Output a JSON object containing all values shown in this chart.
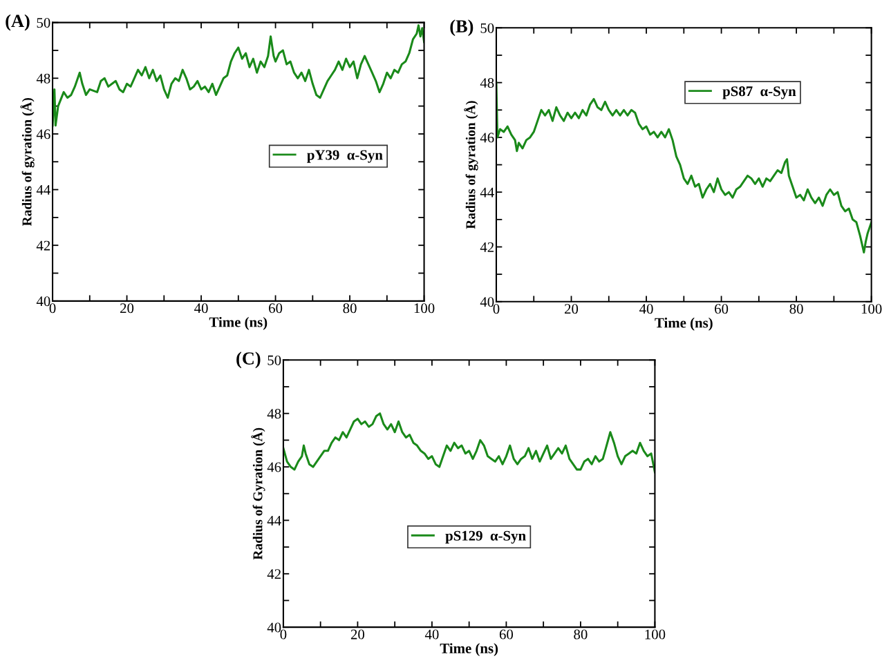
{
  "chart_data": [
    {
      "type": "line",
      "title": "(A)",
      "xlabel": "Time (ns)",
      "ylabel": "Radius of gyration (Å)",
      "legend": "right",
      "grid": false,
      "xlim": [
        0,
        100
      ],
      "ylim": [
        40,
        50
      ],
      "xticks": [
        0,
        {
          "value": 10,
          "label": null
        },
        20,
        {
          "value": 30,
          "label": null
        },
        40,
        {
          "value": 50,
          "label": null
        },
        60,
        {
          "value": 70,
          "label": null
        },
        80,
        {
          "value": 90,
          "label": null
        },
        100
      ],
      "yticks": [
        40,
        {
          "value": 41,
          "label": null
        },
        42,
        {
          "value": 43,
          "label": null
        },
        44,
        {
          "value": 45,
          "label": null
        },
        46,
        {
          "value": 47,
          "label": null
        },
        48,
        {
          "value": 49,
          "label": null
        },
        50
      ],
      "x": [
        0,
        0.5,
        0.8,
        1.5,
        3,
        4,
        5,
        6,
        7.3,
        8,
        9,
        10,
        12,
        13,
        14,
        15,
        16,
        17,
        18,
        19,
        20,
        21,
        22,
        23,
        24,
        25,
        26,
        27,
        28,
        29,
        30,
        31,
        32,
        33,
        34,
        35,
        36,
        37,
        38,
        39,
        40,
        41,
        42,
        43,
        44,
        45,
        46,
        47,
        48,
        49,
        50,
        51,
        52,
        53,
        54,
        55,
        56,
        57,
        58,
        58.7,
        59.5,
        60,
        61,
        62,
        63,
        64,
        65,
        66,
        67,
        68,
        69,
        70,
        71,
        72,
        73,
        74,
        75,
        76,
        77,
        78,
        79,
        80,
        81,
        82,
        83,
        84,
        85,
        86,
        87,
        88,
        89,
        90,
        91,
        92,
        93,
        94,
        95,
        96,
        97,
        98,
        98.5,
        99,
        99.5,
        100
      ],
      "series": [
        {
          "name": "pY39  α-Syn",
          "color": "#1a8a1a",
          "values": [
            46.3,
            47.6,
            46.3,
            47.0,
            47.5,
            47.3,
            47.4,
            47.7,
            48.2,
            47.8,
            47.4,
            47.6,
            47.5,
            47.9,
            48.0,
            47.7,
            47.8,
            47.9,
            47.6,
            47.5,
            47.8,
            47.7,
            48.0,
            48.3,
            48.1,
            48.4,
            48.0,
            48.3,
            47.9,
            48.1,
            47.6,
            47.3,
            47.8,
            48.0,
            47.9,
            48.3,
            48.0,
            47.6,
            47.7,
            47.9,
            47.6,
            47.7,
            47.5,
            47.8,
            47.4,
            47.7,
            48.0,
            48.1,
            48.6,
            48.9,
            49.1,
            48.7,
            48.9,
            48.4,
            48.7,
            48.2,
            48.6,
            48.4,
            48.8,
            49.5,
            48.8,
            48.6,
            48.9,
            49.0,
            48.5,
            48.6,
            48.2,
            48.0,
            48.2,
            47.9,
            48.3,
            47.8,
            47.4,
            47.3,
            47.6,
            47.9,
            48.1,
            48.3,
            48.6,
            48.3,
            48.7,
            48.4,
            48.6,
            48.0,
            48.5,
            48.8,
            48.5,
            48.2,
            47.9,
            47.5,
            47.8,
            48.2,
            48.0,
            48.3,
            48.2,
            48.5,
            48.6,
            48.9,
            49.4,
            49.6,
            49.9,
            49.5,
            49.8,
            49.3
          ]
        }
      ]
    },
    {
      "type": "line",
      "title": "(B)",
      "xlabel": "Time (ns)",
      "ylabel": "Radius of gyration (Å)",
      "legend": "top right",
      "grid": false,
      "xlim": [
        0,
        100
      ],
      "ylim": [
        40,
        50
      ],
      "xticks": [
        0,
        {
          "value": 10,
          "label": null
        },
        20,
        {
          "value": 30,
          "label": null
        },
        40,
        {
          "value": 50,
          "label": null
        },
        60,
        {
          "value": 70,
          "label": null
        },
        80,
        {
          "value": 90,
          "label": null
        },
        100
      ],
      "yticks": [
        40,
        {
          "value": 41,
          "label": null
        },
        42,
        {
          "value": 43,
          "label": null
        },
        44,
        {
          "value": 45,
          "label": null
        },
        46,
        {
          "value": 47,
          "label": null
        },
        48,
        {
          "value": 49,
          "label": null
        },
        50
      ],
      "x": [
        0,
        0.3,
        1,
        2,
        3,
        4,
        5,
        5.5,
        6,
        7,
        8,
        9,
        10,
        11,
        12,
        13,
        14,
        15,
        16,
        17,
        18,
        19,
        20,
        21,
        22,
        23,
        24,
        25,
        26,
        27,
        28,
        29,
        30,
        31,
        32,
        33,
        34,
        35,
        36,
        37,
        38,
        39,
        40,
        41,
        42,
        43,
        44,
        45,
        46,
        47,
        48,
        49,
        50,
        51,
        52,
        53,
        54,
        55,
        56,
        57,
        58,
        59,
        60,
        61,
        62,
        63,
        64,
        65,
        66,
        67,
        68,
        69,
        70,
        71,
        72,
        73,
        74,
        75,
        76,
        77,
        77.5,
        78,
        79,
        80,
        81,
        82,
        83,
        84,
        85,
        86,
        87,
        88,
        89,
        90,
        91,
        92,
        93,
        94,
        95,
        96,
        97,
        98,
        98.5,
        99,
        100
      ],
      "series": [
        {
          "name": "pS87  α-Syn",
          "color": "#1a8a1a",
          "values": [
            48.0,
            46.0,
            46.3,
            46.2,
            46.4,
            46.1,
            45.9,
            45.5,
            45.8,
            45.6,
            45.9,
            46.0,
            46.2,
            46.6,
            47.0,
            46.8,
            47.0,
            46.6,
            47.1,
            46.8,
            46.6,
            46.9,
            46.7,
            46.9,
            46.7,
            47.0,
            46.8,
            47.2,
            47.4,
            47.1,
            47.0,
            47.3,
            47.0,
            46.8,
            47.0,
            46.8,
            47.0,
            46.8,
            47.0,
            46.9,
            46.5,
            46.3,
            46.4,
            46.1,
            46.2,
            46.0,
            46.2,
            46.0,
            46.3,
            45.9,
            45.3,
            45.0,
            44.5,
            44.3,
            44.6,
            44.2,
            44.3,
            43.8,
            44.1,
            44.3,
            44.0,
            44.5,
            44.1,
            43.9,
            44.0,
            43.8,
            44.1,
            44.2,
            44.4,
            44.6,
            44.5,
            44.3,
            44.5,
            44.2,
            44.5,
            44.4,
            44.6,
            44.8,
            44.7,
            45.1,
            45.2,
            44.6,
            44.2,
            43.8,
            43.9,
            43.7,
            44.1,
            43.8,
            43.6,
            43.8,
            43.5,
            43.9,
            44.1,
            43.9,
            44.0,
            43.5,
            43.3,
            43.4,
            43.0,
            42.9,
            42.4,
            41.8,
            42.2,
            42.5,
            42.9
          ]
        }
      ]
    },
    {
      "type": "line",
      "title": "(C)",
      "xlabel": "Time (ns)",
      "ylabel": "Radius of Gyration (Å)",
      "legend": "bottom",
      "grid": false,
      "xlim": [
        0,
        100
      ],
      "ylim": [
        40,
        50
      ],
      "xticks": [
        0,
        {
          "value": 10,
          "label": null
        },
        20,
        {
          "value": 30,
          "label": null
        },
        40,
        {
          "value": 50,
          "label": null
        },
        60,
        {
          "value": 70,
          "label": null
        },
        80,
        {
          "value": 90,
          "label": null
        },
        100
      ],
      "yticks": [
        40,
        {
          "value": 41,
          "label": null
        },
        42,
        {
          "value": 43,
          "label": null
        },
        44,
        {
          "value": 45,
          "label": null
        },
        46,
        {
          "value": 47,
          "label": null
        },
        48,
        {
          "value": 49,
          "label": null
        },
        50
      ],
      "x": [
        0,
        1,
        2,
        3,
        4,
        5,
        5.5,
        6,
        7,
        8,
        9,
        10,
        11,
        12,
        13,
        14,
        15,
        16,
        17,
        18,
        19,
        20,
        21,
        22,
        23,
        24,
        25,
        26,
        27,
        28,
        29,
        30,
        31,
        32,
        33,
        34,
        35,
        36,
        37,
        38,
        39,
        40,
        41,
        42,
        43,
        44,
        45,
        46,
        47,
        48,
        49,
        50,
        51,
        52,
        53,
        54,
        55,
        56,
        57,
        58,
        59,
        60,
        61,
        62,
        63,
        64,
        65,
        66,
        67,
        68,
        69,
        70,
        71,
        72,
        73,
        74,
        75,
        76,
        77,
        78,
        79,
        80,
        81,
        82,
        83,
        84,
        85,
        86,
        87,
        88,
        89,
        90,
        91,
        92,
        93,
        94,
        95,
        96,
        97,
        98,
        99,
        100
      ],
      "series": [
        {
          "name": "pS129  α-Syn",
          "color": "#1a8a1a",
          "values": [
            46.7,
            46.2,
            46.0,
            45.9,
            46.2,
            46.4,
            46.8,
            46.5,
            46.1,
            46.0,
            46.2,
            46.4,
            46.6,
            46.6,
            46.9,
            47.1,
            47.0,
            47.3,
            47.1,
            47.4,
            47.7,
            47.8,
            47.6,
            47.7,
            47.5,
            47.6,
            47.9,
            48.0,
            47.6,
            47.4,
            47.6,
            47.3,
            47.7,
            47.3,
            47.1,
            47.2,
            46.9,
            46.8,
            46.6,
            46.5,
            46.3,
            46.4,
            46.1,
            46.0,
            46.4,
            46.8,
            46.6,
            46.9,
            46.7,
            46.8,
            46.5,
            46.6,
            46.3,
            46.6,
            47.0,
            46.8,
            46.4,
            46.3,
            46.2,
            46.4,
            46.1,
            46.4,
            46.8,
            46.3,
            46.1,
            46.3,
            46.4,
            46.7,
            46.3,
            46.6,
            46.2,
            46.5,
            46.8,
            46.3,
            46.5,
            46.7,
            46.5,
            46.8,
            46.3,
            46.1,
            45.9,
            45.9,
            46.2,
            46.3,
            46.1,
            46.4,
            46.2,
            46.3,
            46.8,
            47.3,
            46.9,
            46.4,
            46.1,
            46.4,
            46.5,
            46.6,
            46.5,
            46.9,
            46.6,
            46.4,
            46.5,
            45.8
          ]
        }
      ]
    }
  ]
}
